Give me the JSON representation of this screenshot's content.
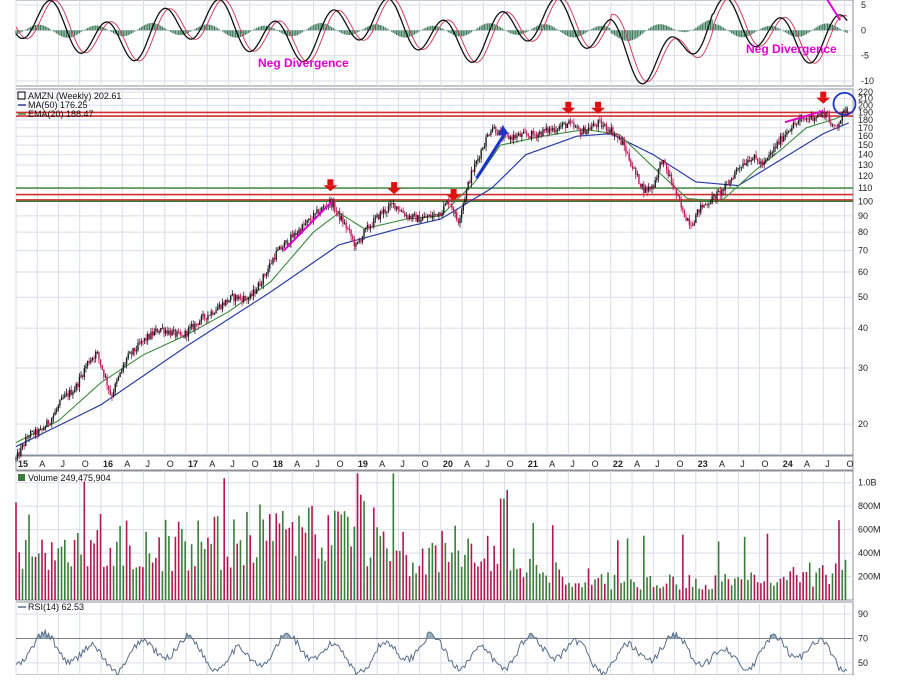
{
  "chart_data": [
    {
      "type": "line",
      "pane": "macd",
      "annotations": [
        "Neg Divergence",
        "Neg Divergence"
      ],
      "y_ticks": [
        "5",
        "0",
        "-5",
        "-10"
      ],
      "ylim": [
        -11,
        6
      ]
    },
    {
      "type": "candlestick",
      "pane": "price",
      "legend": [
        {
          "label": "AMZN (Weekly) 202.61",
          "color": "#000000"
        },
        {
          "label": "MA(50) 176.25",
          "color": "#2b3fa0"
        },
        {
          "label": "EMA(20) 188.47",
          "color": "#3a8a3a"
        }
      ],
      "scale": "log",
      "ylim": [
        16,
        225
      ],
      "y_ticks": [
        "220",
        "210",
        "200",
        "190",
        "180",
        "170",
        "160",
        "150",
        "140",
        "130",
        "120",
        "110",
        "100",
        "90",
        "80",
        "70",
        "60",
        "50",
        "40",
        "30",
        "20"
      ],
      "x_ticks": [
        "15",
        "A",
        "J",
        "O",
        "16",
        "A",
        "J",
        "O",
        "17",
        "A",
        "J",
        "O",
        "18",
        "A",
        "J",
        "O",
        "19",
        "A",
        "J",
        "O",
        "20",
        "A",
        "J",
        "O",
        "21",
        "A",
        "J",
        "O",
        "22",
        "A",
        "J",
        "O",
        "23",
        "A",
        "J",
        "O",
        "24",
        "A",
        "J",
        "O"
      ],
      "x_range": [
        2015.0,
        2024.85
      ],
      "resistance_lines": [
        105,
        101,
        190,
        185
      ],
      "support_lines": [
        110,
        100
      ],
      "price_path": [
        [
          2015.0,
          15.5
        ],
        [
          2015.15,
          18.5
        ],
        [
          2015.3,
          19.0
        ],
        [
          2015.45,
          21.5
        ],
        [
          2015.55,
          24.0
        ],
        [
          2015.7,
          26.0
        ],
        [
          2015.85,
          31.5
        ],
        [
          2015.95,
          33.5
        ],
        [
          2016.05,
          28.0
        ],
        [
          2016.12,
          24.5
        ],
        [
          2016.3,
          32.0
        ],
        [
          2016.5,
          36.5
        ],
        [
          2016.7,
          40.0
        ],
        [
          2016.85,
          38.5
        ],
        [
          2016.95,
          37.5
        ],
        [
          2017.15,
          42.0
        ],
        [
          2017.4,
          47.0
        ],
        [
          2017.55,
          50.0
        ],
        [
          2017.75,
          49.5
        ],
        [
          2017.9,
          57.0
        ],
        [
          2018.05,
          68.0
        ],
        [
          2018.2,
          75.0
        ],
        [
          2018.35,
          82.0
        ],
        [
          2018.55,
          92.0
        ],
        [
          2018.7,
          100.0
        ],
        [
          2018.8,
          90.0
        ],
        [
          2018.9,
          82.0
        ],
        [
          2019.0,
          72.0
        ],
        [
          2019.1,
          80.0
        ],
        [
          2019.3,
          92.0
        ],
        [
          2019.45,
          98.0
        ],
        [
          2019.6,
          90.0
        ],
        [
          2019.75,
          88.0
        ],
        [
          2019.9,
          90.0
        ],
        [
          2020.0,
          93.0
        ],
        [
          2020.1,
          101.0
        ],
        [
          2020.2,
          86.0
        ],
        [
          2020.35,
          120.0
        ],
        [
          2020.5,
          150.0
        ],
        [
          2020.6,
          172.0
        ],
        [
          2020.75,
          158.0
        ],
        [
          2020.9,
          160.0
        ],
        [
          2021.1,
          162.0
        ],
        [
          2021.3,
          168.0
        ],
        [
          2021.5,
          175.0
        ],
        [
          2021.65,
          165.0
        ],
        [
          2021.85,
          175.0
        ],
        [
          2022.0,
          168.0
        ],
        [
          2022.15,
          150.0
        ],
        [
          2022.3,
          120.0
        ],
        [
          2022.4,
          108.0
        ],
        [
          2022.5,
          112.0
        ],
        [
          2022.6,
          135.0
        ],
        [
          2022.7,
          118.0
        ],
        [
          2022.85,
          92.0
        ],
        [
          2022.95,
          85.0
        ],
        [
          2023.05,
          95.0
        ],
        [
          2023.2,
          102.0
        ],
        [
          2023.35,
          110.0
        ],
        [
          2023.5,
          128.0
        ],
        [
          2023.65,
          138.0
        ],
        [
          2023.8,
          130.0
        ],
        [
          2023.95,
          150.0
        ],
        [
          2024.1,
          170.0
        ],
        [
          2024.25,
          180.0
        ],
        [
          2024.4,
          185.0
        ],
        [
          2024.55,
          190.0
        ],
        [
          2024.6,
          168.0
        ],
        [
          2024.7,
          180.0
        ],
        [
          2024.8,
          202.61
        ]
      ],
      "ma50_path": [
        [
          2015.0,
          17.0
        ],
        [
          2016.0,
          23.0
        ],
        [
          2017.0,
          35.0
        ],
        [
          2018.0,
          52.0
        ],
        [
          2018.8,
          73.0
        ],
        [
          2019.5,
          82.0
        ],
        [
          2020.0,
          88.0
        ],
        [
          2020.6,
          110.0
        ],
        [
          2021.0,
          140.0
        ],
        [
          2021.6,
          160.0
        ],
        [
          2022.0,
          163.0
        ],
        [
          2022.5,
          140.0
        ],
        [
          2023.0,
          115.0
        ],
        [
          2023.5,
          112.0
        ],
        [
          2024.0,
          135.0
        ],
        [
          2024.5,
          163.0
        ],
        [
          2024.8,
          176.25
        ]
      ],
      "ema20_path": [
        [
          2015.0,
          17.5
        ],
        [
          2015.5,
          20.5
        ],
        [
          2016.0,
          27.0
        ],
        [
          2016.5,
          33.0
        ],
        [
          2017.0,
          38.0
        ],
        [
          2017.5,
          45.0
        ],
        [
          2018.0,
          56.0
        ],
        [
          2018.5,
          80.0
        ],
        [
          2018.8,
          92.0
        ],
        [
          2019.1,
          82.0
        ],
        [
          2019.6,
          88.0
        ],
        [
          2020.0,
          90.0
        ],
        [
          2020.4,
          115.0
        ],
        [
          2020.7,
          150.0
        ],
        [
          2021.2,
          160.0
        ],
        [
          2021.7,
          168.0
        ],
        [
          2022.1,
          162.0
        ],
        [
          2022.5,
          128.0
        ],
        [
          2022.9,
          102.0
        ],
        [
          2023.3,
          100.0
        ],
        [
          2023.7,
          125.0
        ],
        [
          2024.0,
          145.0
        ],
        [
          2024.3,
          170.0
        ],
        [
          2024.6,
          180.0
        ],
        [
          2024.8,
          188.47
        ]
      ]
    },
    {
      "type": "bar",
      "pane": "volume",
      "legend": "Volume 249,475,904",
      "y_ticks": [
        "1.0B",
        "800M",
        "600M",
        "400M",
        "200M"
      ],
      "ylim": [
        0,
        1100
      ]
    },
    {
      "type": "line",
      "pane": "rsi",
      "legend": "RSI(14) 62.53",
      "y_ticks": [
        "90",
        "70",
        "50"
      ],
      "ylim": [
        40,
        100
      ]
    }
  ],
  "colors": {
    "up": "#2e7d32",
    "down": "#c2185b",
    "resistance": "#d32f2f",
    "support": "#2e7d32",
    "divergence": "#e000d0",
    "ma50": "#2b3fa0",
    "ema20": "#3a8a3a",
    "grid": "#d8dde8",
    "rsi_fill": "#8fa9b8"
  },
  "markers": {
    "down_arrows_x": [
      2018.7,
      2019.45,
      2020.15,
      2021.5,
      2021.85,
      2024.5
    ],
    "blue_arrow": {
      "from": [
        2020.42,
        118
      ],
      "to": [
        2020.75,
        170
      ]
    },
    "circle": {
      "x": 2024.75,
      "y": 205
    }
  }
}
